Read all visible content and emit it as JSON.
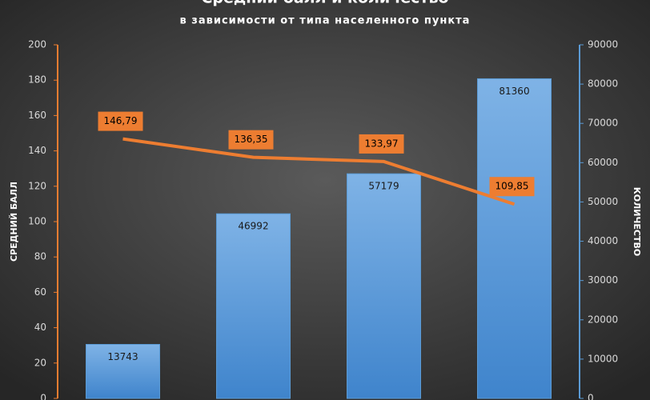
{
  "chart_data": {
    "type": "combo",
    "title": "Средний балл и количество",
    "subtitle": "в зависимости от типа населенного пункта",
    "y_label": "СРЕДНИЙ БАЛЛ",
    "y2_label": "КОЛИЧЕСТВО",
    "categories": [
      null,
      null,
      null,
      null
    ],
    "series": [
      {
        "type": "bar",
        "axis": "y2",
        "color": "#5b9bd5",
        "values": [
          13743,
          46992,
          57179,
          81360
        ]
      },
      {
        "type": "line",
        "axis": "y",
        "color": "#ed7d31",
        "values": [
          146.79,
          136.35,
          133.97,
          109.85
        ],
        "value_labels": [
          "146,79",
          "136,35",
          "133,97",
          "109,85"
        ]
      }
    ],
    "ylim": [
      0,
      200
    ],
    "yticks": [
      0,
      20,
      40,
      60,
      80,
      100,
      120,
      140,
      160,
      180,
      200
    ],
    "y_color": "#ed7d31",
    "y2lim": [
      0,
      90000
    ],
    "y2ticks": [
      0,
      10000,
      20000,
      30000,
      40000,
      50000,
      60000,
      70000,
      80000,
      90000
    ],
    "y2_color": "#5b9bd5",
    "grid": false
  }
}
